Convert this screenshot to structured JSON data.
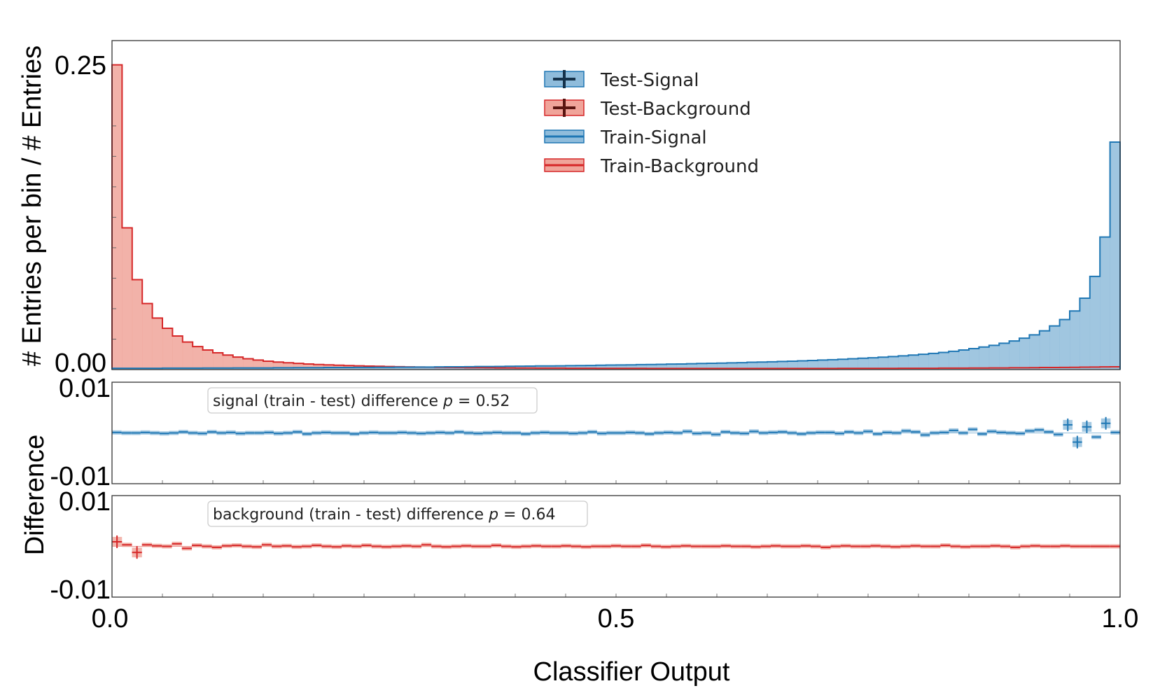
{
  "chart_data": {
    "type": "bar",
    "xlabel": "Classifier Output",
    "xlim": [
      0.0,
      1.0
    ],
    "x_ticks": [
      "0.0",
      "0.5",
      "1.0"
    ],
    "colors": {
      "signal": "#1f77b4",
      "signal_fill": "#8fbcdb",
      "background": "#d62728",
      "background_fill": "#f0a49a"
    },
    "main_panel": {
      "ylabel": "# Entries per bin / # Entries",
      "ylim": [
        0.0,
        0.27
      ],
      "y_ticks": [
        "0.25",
        "0.00"
      ],
      "bins": 100,
      "legend": {
        "position": "upper-center",
        "entries": [
          "Test-Signal",
          "Test-Background",
          "Train-Signal",
          "Train-Background"
        ]
      },
      "series": [
        {
          "name": "Train-Signal",
          "values": [
            0.0011,
            0.0011,
            0.0011,
            0.0011,
            0.0011,
            0.0012,
            0.0012,
            0.0012,
            0.0012,
            0.0013,
            0.0013,
            0.0013,
            0.0014,
            0.0014,
            0.0014,
            0.0014,
            0.0015,
            0.0015,
            0.0016,
            0.0016,
            0.0016,
            0.0017,
            0.0017,
            0.0017,
            0.0018,
            0.0018,
            0.0019,
            0.0019,
            0.002,
            0.002,
            0.0021,
            0.0021,
            0.0022,
            0.0023,
            0.0023,
            0.0024,
            0.0025,
            0.0025,
            0.0026,
            0.0027,
            0.0028,
            0.0029,
            0.003,
            0.003,
            0.0031,
            0.0032,
            0.0033,
            0.0034,
            0.0036,
            0.0037,
            0.0038,
            0.0039,
            0.0041,
            0.0042,
            0.0043,
            0.0045,
            0.0046,
            0.0048,
            0.005,
            0.0052,
            0.0053,
            0.0055,
            0.0057,
            0.006,
            0.0062,
            0.0064,
            0.0067,
            0.0069,
            0.0072,
            0.0075,
            0.0078,
            0.0081,
            0.0085,
            0.0089,
            0.0093,
            0.0097,
            0.0102,
            0.0107,
            0.0113,
            0.0119,
            0.0126,
            0.0133,
            0.0141,
            0.015,
            0.0161,
            0.0172,
            0.0185,
            0.0199,
            0.0216,
            0.0235,
            0.0258,
            0.0285,
            0.0318,
            0.0358,
            0.0411,
            0.0481,
            0.0586,
            0.0765,
            0.1088,
            0.1867
          ]
        },
        {
          "name": "Train-Background",
          "values": [
            0.2501,
            0.1163,
            0.0738,
            0.0542,
            0.0423,
            0.0339,
            0.0276,
            0.0226,
            0.0189,
            0.0161,
            0.0138,
            0.0119,
            0.0103,
            0.0089,
            0.0078,
            0.0069,
            0.0062,
            0.0056,
            0.0051,
            0.0046,
            0.0042,
            0.0039,
            0.0036,
            0.0033,
            0.0031,
            0.0029,
            0.0027,
            0.0025,
            0.0024,
            0.0022,
            0.0021,
            0.002,
            0.0019,
            0.0018,
            0.0017,
            0.0016,
            0.0016,
            0.0015,
            0.0014,
            0.0014,
            0.0013,
            0.0013,
            0.0012,
            0.0012,
            0.0012,
            0.0011,
            0.0011,
            0.0011,
            0.001,
            0.001,
            0.001,
            0.001,
            0.001,
            0.0009,
            0.0009,
            0.0009,
            0.0009,
            0.0009,
            0.0009,
            0.0009,
            0.0009,
            0.0009,
            0.0009,
            0.0009,
            0.0009,
            0.0009,
            0.0009,
            0.0009,
            0.0009,
            0.0009,
            0.0009,
            0.0009,
            0.001,
            0.001,
            0.001,
            0.001,
            0.001,
            0.001,
            0.0011,
            0.0011,
            0.0011,
            0.0011,
            0.0012,
            0.0012,
            0.0012,
            0.0013,
            0.0013,
            0.0014,
            0.0014,
            0.0015,
            0.0015,
            0.0016,
            0.0017,
            0.0017,
            0.0018,
            0.0019,
            0.002,
            0.0021,
            0.0022,
            0.0023
          ]
        }
      ]
    },
    "difference_panels": {
      "ylabel": "Difference",
      "ylim": [
        -0.01,
        0.01
      ],
      "y_ticks": [
        "0.01",
        "-0.01"
      ],
      "panels": [
        {
          "name": "signal",
          "annotation_prefix": "signal (train - test) difference ",
          "p_symbol": "p",
          "p_value": "0.52",
          "values": [
            0.0001,
            0.0,
            0.0,
            0.0001,
            0.0,
            -0.0001,
            0.0,
            0.0002,
            0.0,
            -0.0001,
            0.0002,
            0.0,
            0.0001,
            -0.0001,
            0.0,
            0.0,
            0.0001,
            -0.0001,
            0.0,
            0.0002,
            -0.0002,
            0.0,
            0.0001,
            0.0,
            0.0,
            -0.0002,
            0.0,
            0.0001,
            0.0,
            0.0,
            0.0001,
            0.0,
            -0.0001,
            0.0,
            0.0001,
            0.0,
            0.0002,
            0.0,
            -0.0001,
            0.0,
            0.0001,
            0.0,
            0.0,
            -0.0002,
            0.0,
            0.0001,
            0.0,
            0.0,
            -0.0001,
            0.0,
            0.0002,
            -0.0001,
            0.0,
            0.0,
            0.0001,
            0.0,
            -0.0002,
            0.0,
            0.0001,
            0.0,
            0.0003,
            -0.0001,
            0.0,
            -0.0003,
            0.0002,
            0.0,
            -0.0001,
            0.0003,
            0.0,
            0.0001,
            0.0002,
            0.0,
            -0.0002,
            0.0,
            0.0001,
            0.0001,
            -0.0001,
            0.0002,
            0.0,
            0.0003,
            -0.0002,
            0.0001,
            0.0,
            0.0004,
            0.0002,
            -0.0004,
            0.0,
            0.0001,
            0.0005,
            0.0,
            0.0007,
            -0.0002,
            0.0003,
            0.0001,
            0.0,
            -0.0001,
            0.0004,
            0.0006,
            0.0002,
            -0.0003,
            0.0016,
            -0.0018,
            0.0012,
            -0.0008,
            0.0019,
            0.0001
          ]
        },
        {
          "name": "background",
          "annotation_prefix": "background (train - test) difference ",
          "p_symbol": "p",
          "p_value": "0.64",
          "values": [
            0.0009,
            0.0003,
            -0.0012,
            0.0003,
            0.0001,
            0.0,
            0.0005,
            -0.0004,
            0.0002,
            0.0,
            -0.0002,
            0.0001,
            0.0002,
            0.0,
            -0.0001,
            0.0003,
            0.0,
            0.0001,
            -0.0001,
            0.0,
            0.0002,
            0.0,
            -0.0001,
            0.0001,
            0.0,
            0.0002,
            0.0,
            -0.0001,
            0.0,
            0.0001,
            0.0,
            0.0003,
            0.0,
            -0.0001,
            0.0,
            0.0001,
            0.0,
            0.0,
            0.0002,
            0.0,
            -0.0001,
            0.0,
            0.0001,
            0.0,
            0.0,
            0.0001,
            0.0,
            -0.0001,
            0.0,
            0.0,
            0.0001,
            0.0,
            0.0,
            0.0002,
            0.0,
            -0.0001,
            0.0,
            0.0001,
            0.0,
            0.0,
            0.0,
            0.0001,
            0.0,
            0.0,
            -0.0001,
            0.0,
            0.0001,
            0.0,
            0.0,
            0.0001,
            0.0,
            -0.0002,
            0.0,
            0.0001,
            0.0,
            0.0,
            0.0001,
            0.0,
            -0.0001,
            0.0,
            0.0001,
            0.0,
            0.0,
            0.0002,
            0.0,
            -0.0001,
            0.0,
            0.0,
            0.0001,
            0.0,
            -0.0002,
            0.0,
            0.0001,
            0.0,
            0.0,
            0.0001,
            0.0,
            0.0,
            0.0,
            0.0,
            0.0
          ]
        }
      ]
    }
  }
}
